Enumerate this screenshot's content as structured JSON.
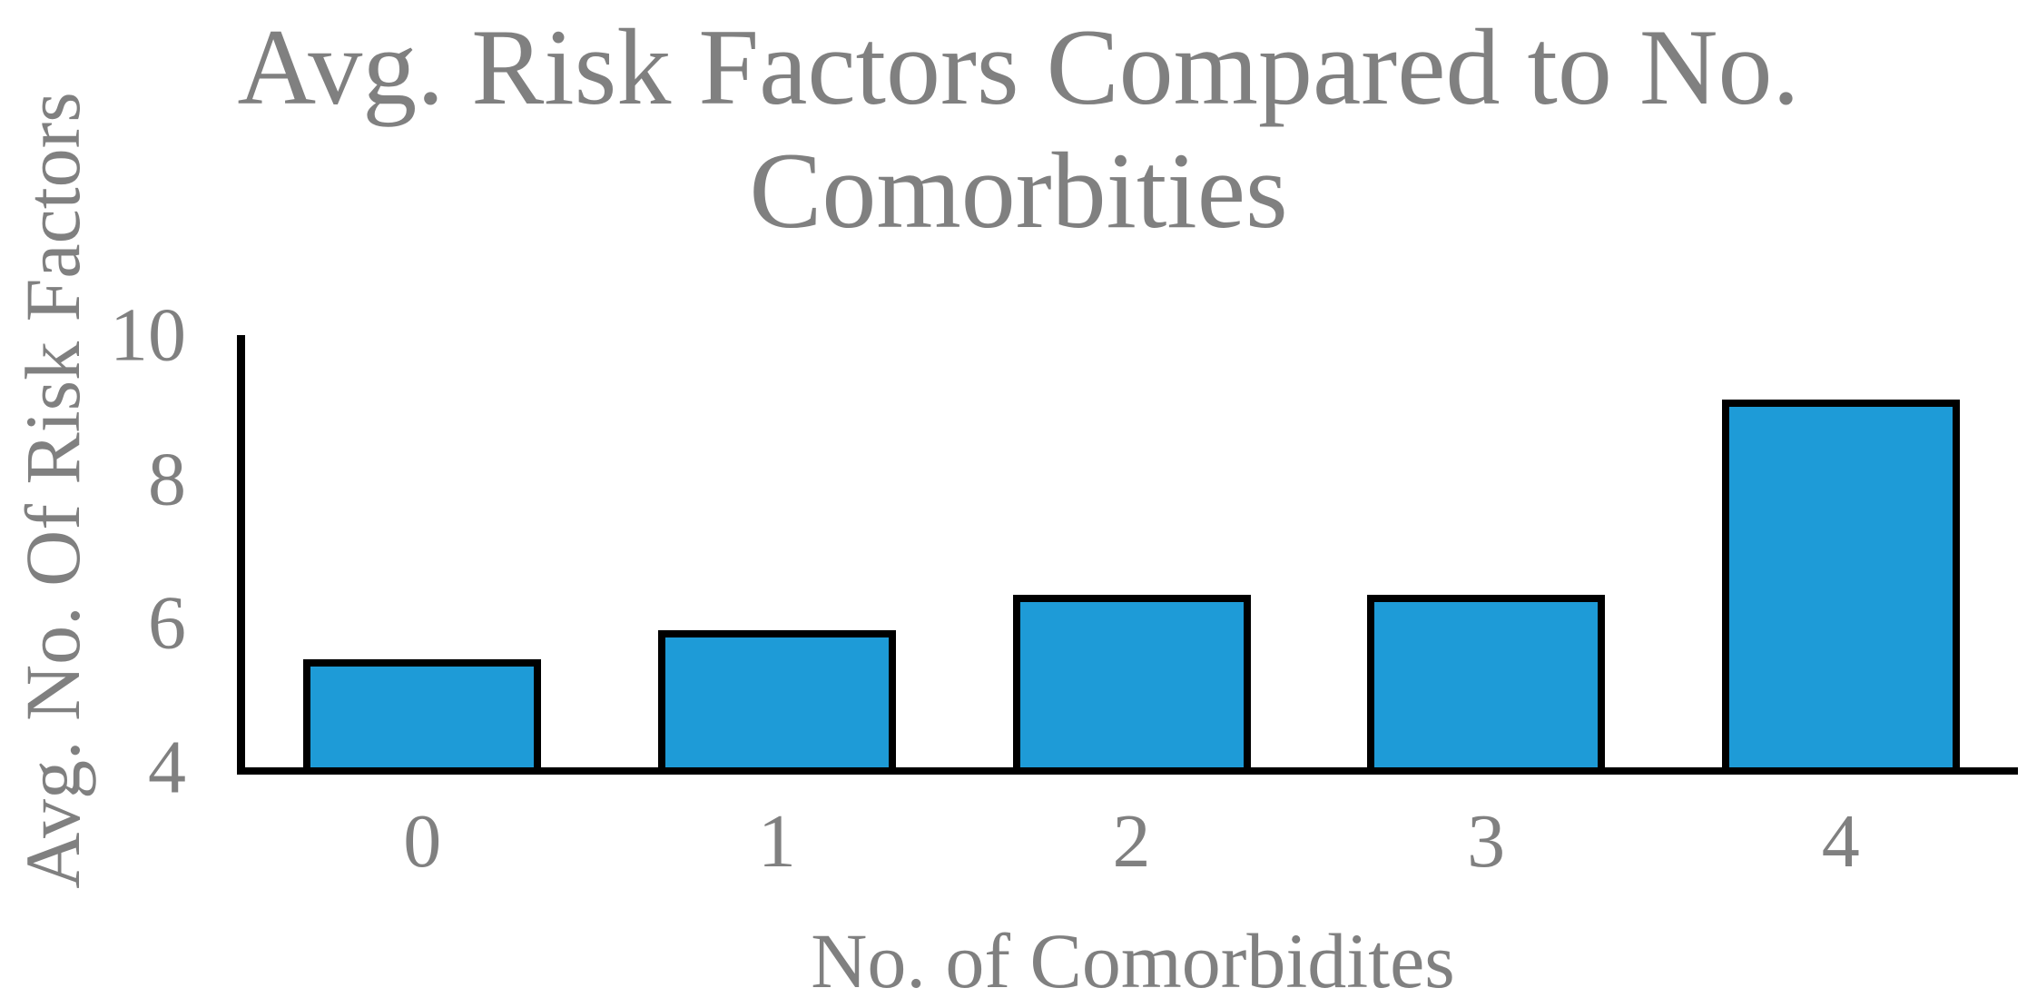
{
  "chart": {
    "title_line1": "Avg. Risk Factors Compared to No.",
    "title_line2": "Comorbities",
    "colors": {
      "bar_fill": "#1E9BD7",
      "bar_border": "#000000",
      "axis_line": "#000000",
      "text_gray": "#808080"
    }
  },
  "chart_data": {
    "type": "bar",
    "title": "Avg. Risk Factors Compared to No. Comorbities",
    "xlabel": "No. of Comorbidites",
    "ylabel": "Avg. No. Of Risk Factors",
    "categories": [
      "0",
      "1",
      "2",
      "3",
      "4"
    ],
    "values": [
      5.5,
      5.9,
      6.4,
      6.4,
      9.1
    ],
    "ylim": [
      4,
      10
    ],
    "yticks": [
      10,
      8,
      6,
      4
    ],
    "grid": false,
    "legend": false,
    "bar_color": "#1E9BD7",
    "bar_border_color": "#000000"
  }
}
